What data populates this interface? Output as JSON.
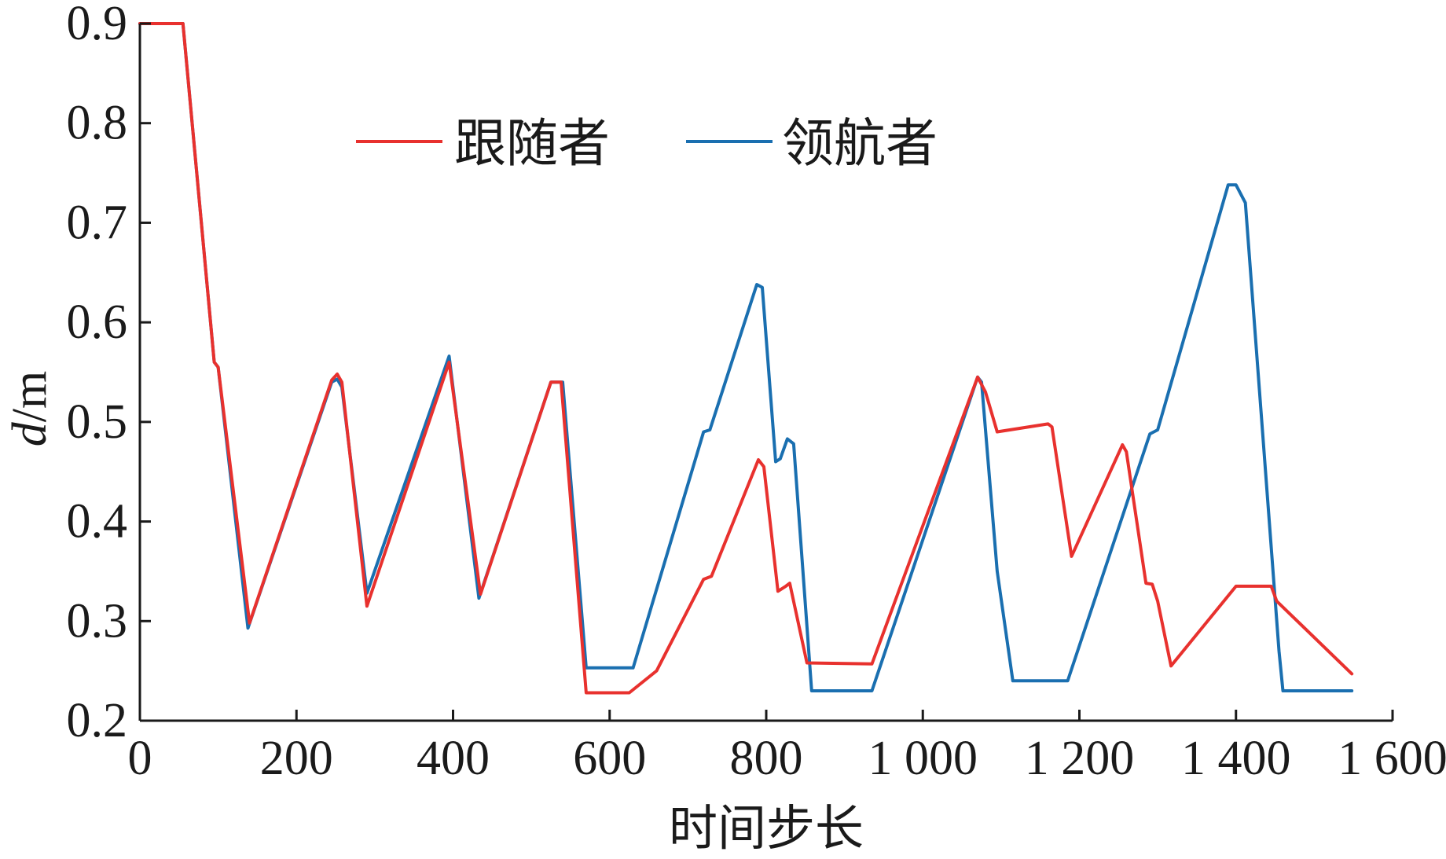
{
  "chart_data": {
    "type": "line",
    "xlabel": "时间步长",
    "ylabel_italic": "d",
    "ylabel_unit": "/m",
    "xlim": [
      0,
      1600
    ],
    "ylim": [
      0.2,
      0.9
    ],
    "xticks": [
      0,
      200,
      400,
      600,
      800,
      1000,
      1200,
      1400,
      1600
    ],
    "xtick_labels": [
      "0",
      "200",
      "400",
      "600",
      "800",
      "1 000",
      "1 200",
      "1 400",
      "1 600"
    ],
    "yticks": [
      0.2,
      0.3,
      0.4,
      0.5,
      0.6,
      0.7,
      0.8,
      0.9
    ],
    "ytick_labels": [
      "0.2",
      "0.3",
      "0.4",
      "0.5",
      "0.6",
      "0.7",
      "0.8",
      "0.9"
    ],
    "grid": false,
    "legend_placement": "top-center",
    "series": [
      {
        "name": "跟随者",
        "color": "#e8312e",
        "x": [
          0,
          55,
          95,
          100,
          140,
          245,
          252,
          258,
          290,
          395,
          435,
          525,
          538,
          570,
          625,
          660,
          720,
          730,
          790,
          797,
          815,
          825,
          830,
          852,
          935,
          1070,
          1080,
          1095,
          1160,
          1165,
          1190,
          1255,
          1260,
          1285,
          1293,
          1300,
          1317,
          1400,
          1445,
          1452,
          1548
        ],
        "values": [
          0.9,
          0.9,
          0.56,
          0.555,
          0.298,
          0.542,
          0.548,
          0.54,
          0.315,
          0.56,
          0.327,
          0.54,
          0.54,
          0.228,
          0.228,
          0.25,
          0.342,
          0.345,
          0.462,
          0.455,
          0.33,
          0.335,
          0.338,
          0.258,
          0.257,
          0.545,
          0.53,
          0.49,
          0.498,
          0.495,
          0.365,
          0.477,
          0.47,
          0.338,
          0.337,
          0.32,
          0.255,
          0.335,
          0.335,
          0.32,
          0.247
        ]
      },
      {
        "name": "领航者",
        "color": "#1a6fb0",
        "x": [
          0,
          55,
          95,
          100,
          138,
          245,
          252,
          258,
          290,
          395,
          433,
          525,
          540,
          570,
          630,
          720,
          728,
          788,
          795,
          812,
          818,
          827,
          835,
          858,
          935,
          1070,
          1075,
          1095,
          1115,
          1185,
          1290,
          1300,
          1390,
          1400,
          1412,
          1455,
          1460,
          1548
        ],
        "values": [
          0.9,
          0.9,
          0.56,
          0.555,
          0.293,
          0.54,
          0.543,
          0.535,
          0.328,
          0.566,
          0.323,
          0.54,
          0.54,
          0.253,
          0.253,
          0.49,
          0.492,
          0.638,
          0.635,
          0.46,
          0.463,
          0.483,
          0.478,
          0.23,
          0.23,
          0.545,
          0.54,
          0.35,
          0.24,
          0.24,
          0.488,
          0.492,
          0.738,
          0.738,
          0.72,
          0.27,
          0.23,
          0.23
        ]
      }
    ]
  }
}
